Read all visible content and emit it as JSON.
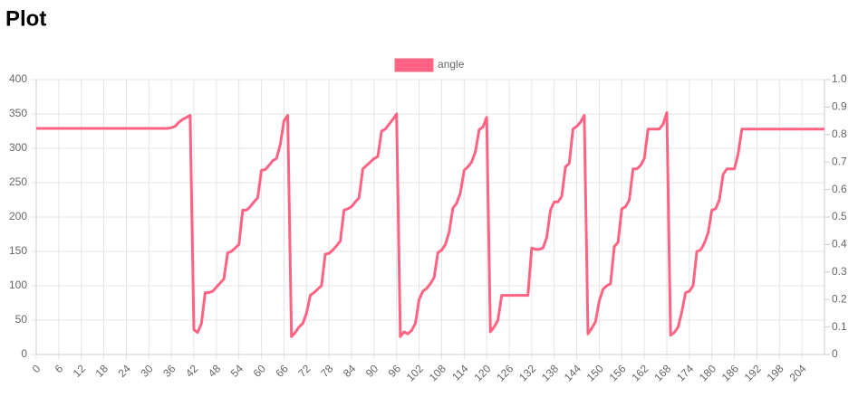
{
  "header": {
    "title": "Plot"
  },
  "chart_data": {
    "type": "line",
    "x": [
      0,
      1,
      2,
      3,
      4,
      5,
      6,
      7,
      8,
      9,
      10,
      11,
      12,
      13,
      14,
      15,
      16,
      17,
      18,
      19,
      20,
      21,
      22,
      23,
      24,
      25,
      26,
      27,
      28,
      29,
      30,
      31,
      32,
      33,
      34,
      35,
      36,
      37,
      38,
      39,
      40,
      41,
      42,
      43,
      44,
      45,
      46,
      47,
      48,
      49,
      50,
      51,
      52,
      53,
      54,
      55,
      56,
      57,
      58,
      59,
      60,
      61,
      62,
      63,
      64,
      65,
      66,
      67,
      68,
      69,
      70,
      71,
      72,
      73,
      74,
      75,
      76,
      77,
      78,
      79,
      80,
      81,
      82,
      83,
      84,
      85,
      86,
      87,
      88,
      89,
      90,
      91,
      92,
      93,
      94,
      95,
      96,
      97,
      98,
      99,
      100,
      101,
      102,
      103,
      104,
      105,
      106,
      107,
      108,
      109,
      110,
      111,
      112,
      113,
      114,
      115,
      116,
      117,
      118,
      119,
      120,
      121,
      122,
      123,
      124,
      125,
      126,
      127,
      128,
      129,
      130,
      131,
      132,
      133,
      134,
      135,
      136,
      137,
      138,
      139,
      140,
      141,
      142,
      143,
      144,
      145,
      146,
      147,
      148,
      149,
      150,
      151,
      152,
      153,
      154,
      155,
      156,
      157,
      158,
      159,
      160,
      161,
      162,
      163,
      164,
      165,
      166,
      167,
      168,
      169,
      170,
      171,
      172,
      173,
      174,
      175,
      176,
      177,
      178,
      179,
      180,
      181,
      182,
      183,
      184,
      185,
      186,
      187,
      188,
      189,
      190,
      191,
      192,
      193,
      194,
      195,
      196,
      197,
      198,
      199,
      200,
      201,
      202,
      203,
      204,
      205,
      206,
      207,
      208,
      209,
      210
    ],
    "series": [
      {
        "name": "angle",
        "color": "#ff6384",
        "values": [
          329,
          329,
          329,
          329,
          329,
          329,
          329,
          329,
          329,
          329,
          329,
          329,
          329,
          329,
          329,
          329,
          329,
          329,
          329,
          329,
          329,
          329,
          329,
          329,
          329,
          329,
          329,
          329,
          329,
          329,
          329,
          329,
          329,
          329,
          329,
          329,
          330,
          332,
          338,
          342,
          345,
          348,
          36,
          32,
          45,
          90,
          90,
          92,
          98,
          104,
          110,
          148,
          150,
          155,
          160,
          210,
          210,
          215,
          222,
          228,
          268,
          269,
          275,
          282,
          285,
          305,
          340,
          348,
          26,
          32,
          40,
          45,
          60,
          86,
          90,
          95,
          100,
          146,
          147,
          152,
          158,
          165,
          210,
          212,
          215,
          222,
          228,
          270,
          275,
          280,
          285,
          288,
          325,
          328,
          335,
          342,
          350,
          26,
          33,
          30,
          35,
          45,
          80,
          92,
          96,
          103,
          112,
          148,
          152,
          160,
          178,
          213,
          220,
          235,
          268,
          273,
          280,
          295,
          327,
          331,
          345,
          33,
          40,
          50,
          86,
          86,
          86,
          86,
          86,
          86,
          86,
          86,
          155,
          153,
          153,
          155,
          170,
          210,
          222,
          222,
          230,
          273,
          278,
          328,
          332,
          338,
          348,
          30,
          38,
          48,
          78,
          95,
          100,
          103,
          157,
          163,
          212,
          215,
          225,
          270,
          270,
          275,
          285,
          328,
          328,
          328,
          328,
          335,
          352,
          28,
          32,
          40,
          62,
          90,
          92,
          100,
          150,
          152,
          162,
          177,
          210,
          212,
          225,
          262,
          270,
          270,
          270,
          292,
          328,
          328,
          328,
          328,
          328,
          328,
          328,
          328,
          328,
          328,
          328,
          328,
          328,
          328,
          328,
          328,
          328,
          328,
          328,
          328,
          328,
          328,
          328
        ]
      }
    ],
    "xlim": [
      0,
      210
    ],
    "xticks": [
      0,
      6,
      12,
      18,
      24,
      30,
      36,
      42,
      48,
      54,
      60,
      66,
      72,
      78,
      84,
      90,
      96,
      102,
      108,
      114,
      120,
      126,
      132,
      138,
      144,
      150,
      156,
      162,
      168,
      174,
      180,
      186,
      192,
      198,
      204
    ],
    "ylim": [
      0,
      400
    ],
    "yticks": [
      0,
      50,
      100,
      150,
      200,
      250,
      300,
      350,
      400
    ],
    "y2lim": [
      0,
      1
    ],
    "y2ticks": [
      0,
      0.1,
      0.2,
      0.3,
      0.4,
      0.5,
      0.6,
      0.7,
      0.8,
      0.9,
      {
        "value": 1,
        "label": "1.0"
      }
    ],
    "grid": true,
    "legend": "top"
  }
}
